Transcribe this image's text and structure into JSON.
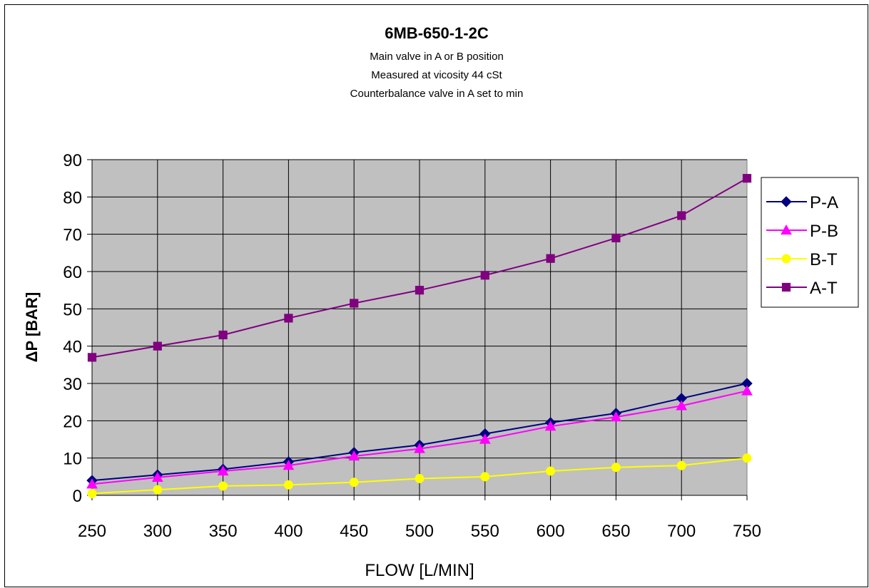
{
  "chart_data": {
    "type": "line",
    "title": "6MB-650-1-2C",
    "subtitle_lines": [
      "Main valve in A or B position",
      "Measured at vicosity 44 cSt",
      "Counterbalance valve in A set to min"
    ],
    "xlabel": "FLOW   [L/MIN]",
    "ylabel": "ΔP [BAR]",
    "x": [
      250,
      300,
      350,
      400,
      450,
      500,
      550,
      600,
      650,
      700,
      750
    ],
    "x_tick_labels": [
      "250",
      "300",
      "350",
      "400",
      "450",
      "500",
      "550",
      "600",
      "650",
      "700",
      "750"
    ],
    "y_tick_labels": [
      "0",
      "10",
      "20",
      "30",
      "40",
      "50",
      "60",
      "70",
      "80",
      "90"
    ],
    "ylim": [
      0,
      90
    ],
    "grid": true,
    "plot_background": "#c0c0c0",
    "legend_position": "right",
    "series": [
      {
        "name": "P-A",
        "color": "#000080",
        "marker": "diamond",
        "values": [
          4,
          5.5,
          7,
          9,
          11.5,
          13.5,
          16.5,
          19.5,
          22,
          26,
          30
        ]
      },
      {
        "name": "P-B",
        "color": "#ff00ff",
        "marker": "triangle",
        "values": [
          3,
          4.8,
          6.5,
          8,
          10.5,
          12.5,
          15,
          18.5,
          21,
          24,
          28
        ]
      },
      {
        "name": "B-T",
        "color": "#ffff00",
        "marker": "circle",
        "values": [
          0.5,
          1.5,
          2.5,
          2.8,
          3.5,
          4.5,
          5,
          6.5,
          7.5,
          8,
          10
        ]
      },
      {
        "name": "A-T",
        "color": "#800080",
        "marker": "square",
        "values": [
          37,
          40,
          43,
          47.5,
          51.5,
          55,
          59,
          63.5,
          69,
          75,
          85
        ]
      }
    ]
  }
}
